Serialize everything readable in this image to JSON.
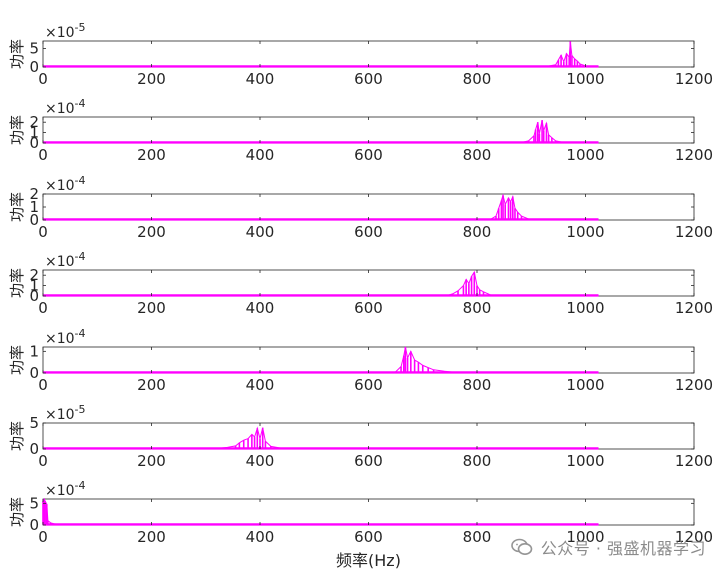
{
  "chart_data": {
    "type": "line",
    "x_label": "频率(Hz)",
    "y_label": "功率",
    "x_ticks": [
      0,
      200,
      400,
      600,
      800,
      1000,
      1200
    ],
    "x_range": [
      0,
      1200
    ],
    "grid": false,
    "line_color": "#ff00ff",
    "subplots": [
      {
        "exponent_label": "×10",
        "exponent": "-5",
        "y_ticks": [
          0,
          5
        ],
        "y_range": [
          0,
          7
        ],
        "peaks": [
          [
            900,
            0.05
          ],
          [
            930,
            0.2
          ],
          [
            945,
            0.6
          ],
          [
            950,
            1.9
          ],
          [
            955,
            3.2
          ],
          [
            960,
            1.4
          ],
          [
            965,
            3.6
          ],
          [
            970,
            2.6
          ],
          [
            972,
            6.9
          ],
          [
            975,
            3.1
          ],
          [
            980,
            2.2
          ],
          [
            985,
            1.6
          ],
          [
            990,
            0.8
          ],
          [
            1000,
            0.3
          ],
          [
            1010,
            0.1
          ]
        ]
      },
      {
        "exponent_label": "×10",
        "exponent": "-4",
        "y_ticks": [
          0,
          1,
          2
        ],
        "y_range": [
          0,
          2.5
        ],
        "peaks": [
          [
            880,
            0.03
          ],
          [
            895,
            0.2
          ],
          [
            905,
            0.7
          ],
          [
            908,
            1.3
          ],
          [
            912,
            2.0
          ],
          [
            915,
            0.9
          ],
          [
            920,
            2.2
          ],
          [
            923,
            1.2
          ],
          [
            928,
            1.9
          ],
          [
            932,
            0.8
          ],
          [
            938,
            0.5
          ],
          [
            945,
            0.2
          ],
          [
            960,
            0.05
          ]
        ]
      },
      {
        "exponent_label": "×10",
        "exponent": "-4",
        "y_ticks": [
          0,
          1,
          2
        ],
        "y_range": [
          0,
          2
        ],
        "peaks": [
          [
            825,
            0.05
          ],
          [
            835,
            0.3
          ],
          [
            840,
            0.9
          ],
          [
            845,
            1.5
          ],
          [
            848,
            1.9
          ],
          [
            852,
            1.2
          ],
          [
            858,
            1.7
          ],
          [
            862,
            1.4
          ],
          [
            866,
            1.8
          ],
          [
            870,
            0.9
          ],
          [
            875,
            0.6
          ],
          [
            882,
            0.3
          ],
          [
            895,
            0.08
          ]
        ]
      },
      {
        "exponent_label": "×10",
        "exponent": "-4",
        "y_ticks": [
          0,
          1,
          2
        ],
        "y_range": [
          0,
          2.5
        ],
        "peaks": [
          [
            745,
            0.05
          ],
          [
            755,
            0.2
          ],
          [
            765,
            0.5
          ],
          [
            775,
            1.0
          ],
          [
            780,
            1.6
          ],
          [
            785,
            1.2
          ],
          [
            790,
            1.9
          ],
          [
            795,
            2.3
          ],
          [
            800,
            1.0
          ],
          [
            805,
            0.6
          ],
          [
            812,
            0.4
          ],
          [
            825,
            0.1
          ]
        ]
      },
      {
        "exponent_label": "×10",
        "exponent": "-4",
        "y_ticks": [
          0,
          1
        ],
        "y_range": [
          0,
          1.2
        ],
        "peaks": [
          [
            650,
            0.05
          ],
          [
            660,
            0.3
          ],
          [
            665,
            0.8
          ],
          [
            668,
            1.2
          ],
          [
            672,
            0.7
          ],
          [
            678,
            1.0
          ],
          [
            685,
            0.6
          ],
          [
            692,
            0.5
          ],
          [
            700,
            0.35
          ],
          [
            710,
            0.25
          ],
          [
            720,
            0.15
          ],
          [
            740,
            0.08
          ],
          [
            760,
            0.03
          ]
        ]
      },
      {
        "exponent_label": "×10",
        "exponent": "-5",
        "y_ticks": [
          0,
          5
        ],
        "y_range": [
          0,
          5
        ],
        "peaks": [
          [
            320,
            0.1
          ],
          [
            340,
            0.3
          ],
          [
            355,
            0.6
          ],
          [
            362,
            1.2
          ],
          [
            370,
            1.7
          ],
          [
            378,
            2.0
          ],
          [
            385,
            2.8
          ],
          [
            390,
            2.3
          ],
          [
            395,
            4.0
          ],
          [
            400,
            2.0
          ],
          [
            405,
            4.1
          ],
          [
            410,
            1.5
          ],
          [
            420,
            0.5
          ],
          [
            440,
            0.15
          ]
        ]
      },
      {
        "exponent_label": "×10",
        "exponent": "-4",
        "y_ticks": [
          0,
          5
        ],
        "y_range": [
          0,
          6
        ],
        "peaks": [
          [
            0,
            5.5
          ],
          [
            2,
            6.0
          ],
          [
            4,
            5.5
          ],
          [
            7,
            4.8
          ],
          [
            9,
            1.0
          ],
          [
            14,
            0.5
          ],
          [
            20,
            0.3
          ],
          [
            30,
            0.1
          ]
        ]
      }
    ]
  },
  "watermark": {
    "text": "公众号 · 强盛机器学习",
    "icon": "wechat-icon"
  }
}
